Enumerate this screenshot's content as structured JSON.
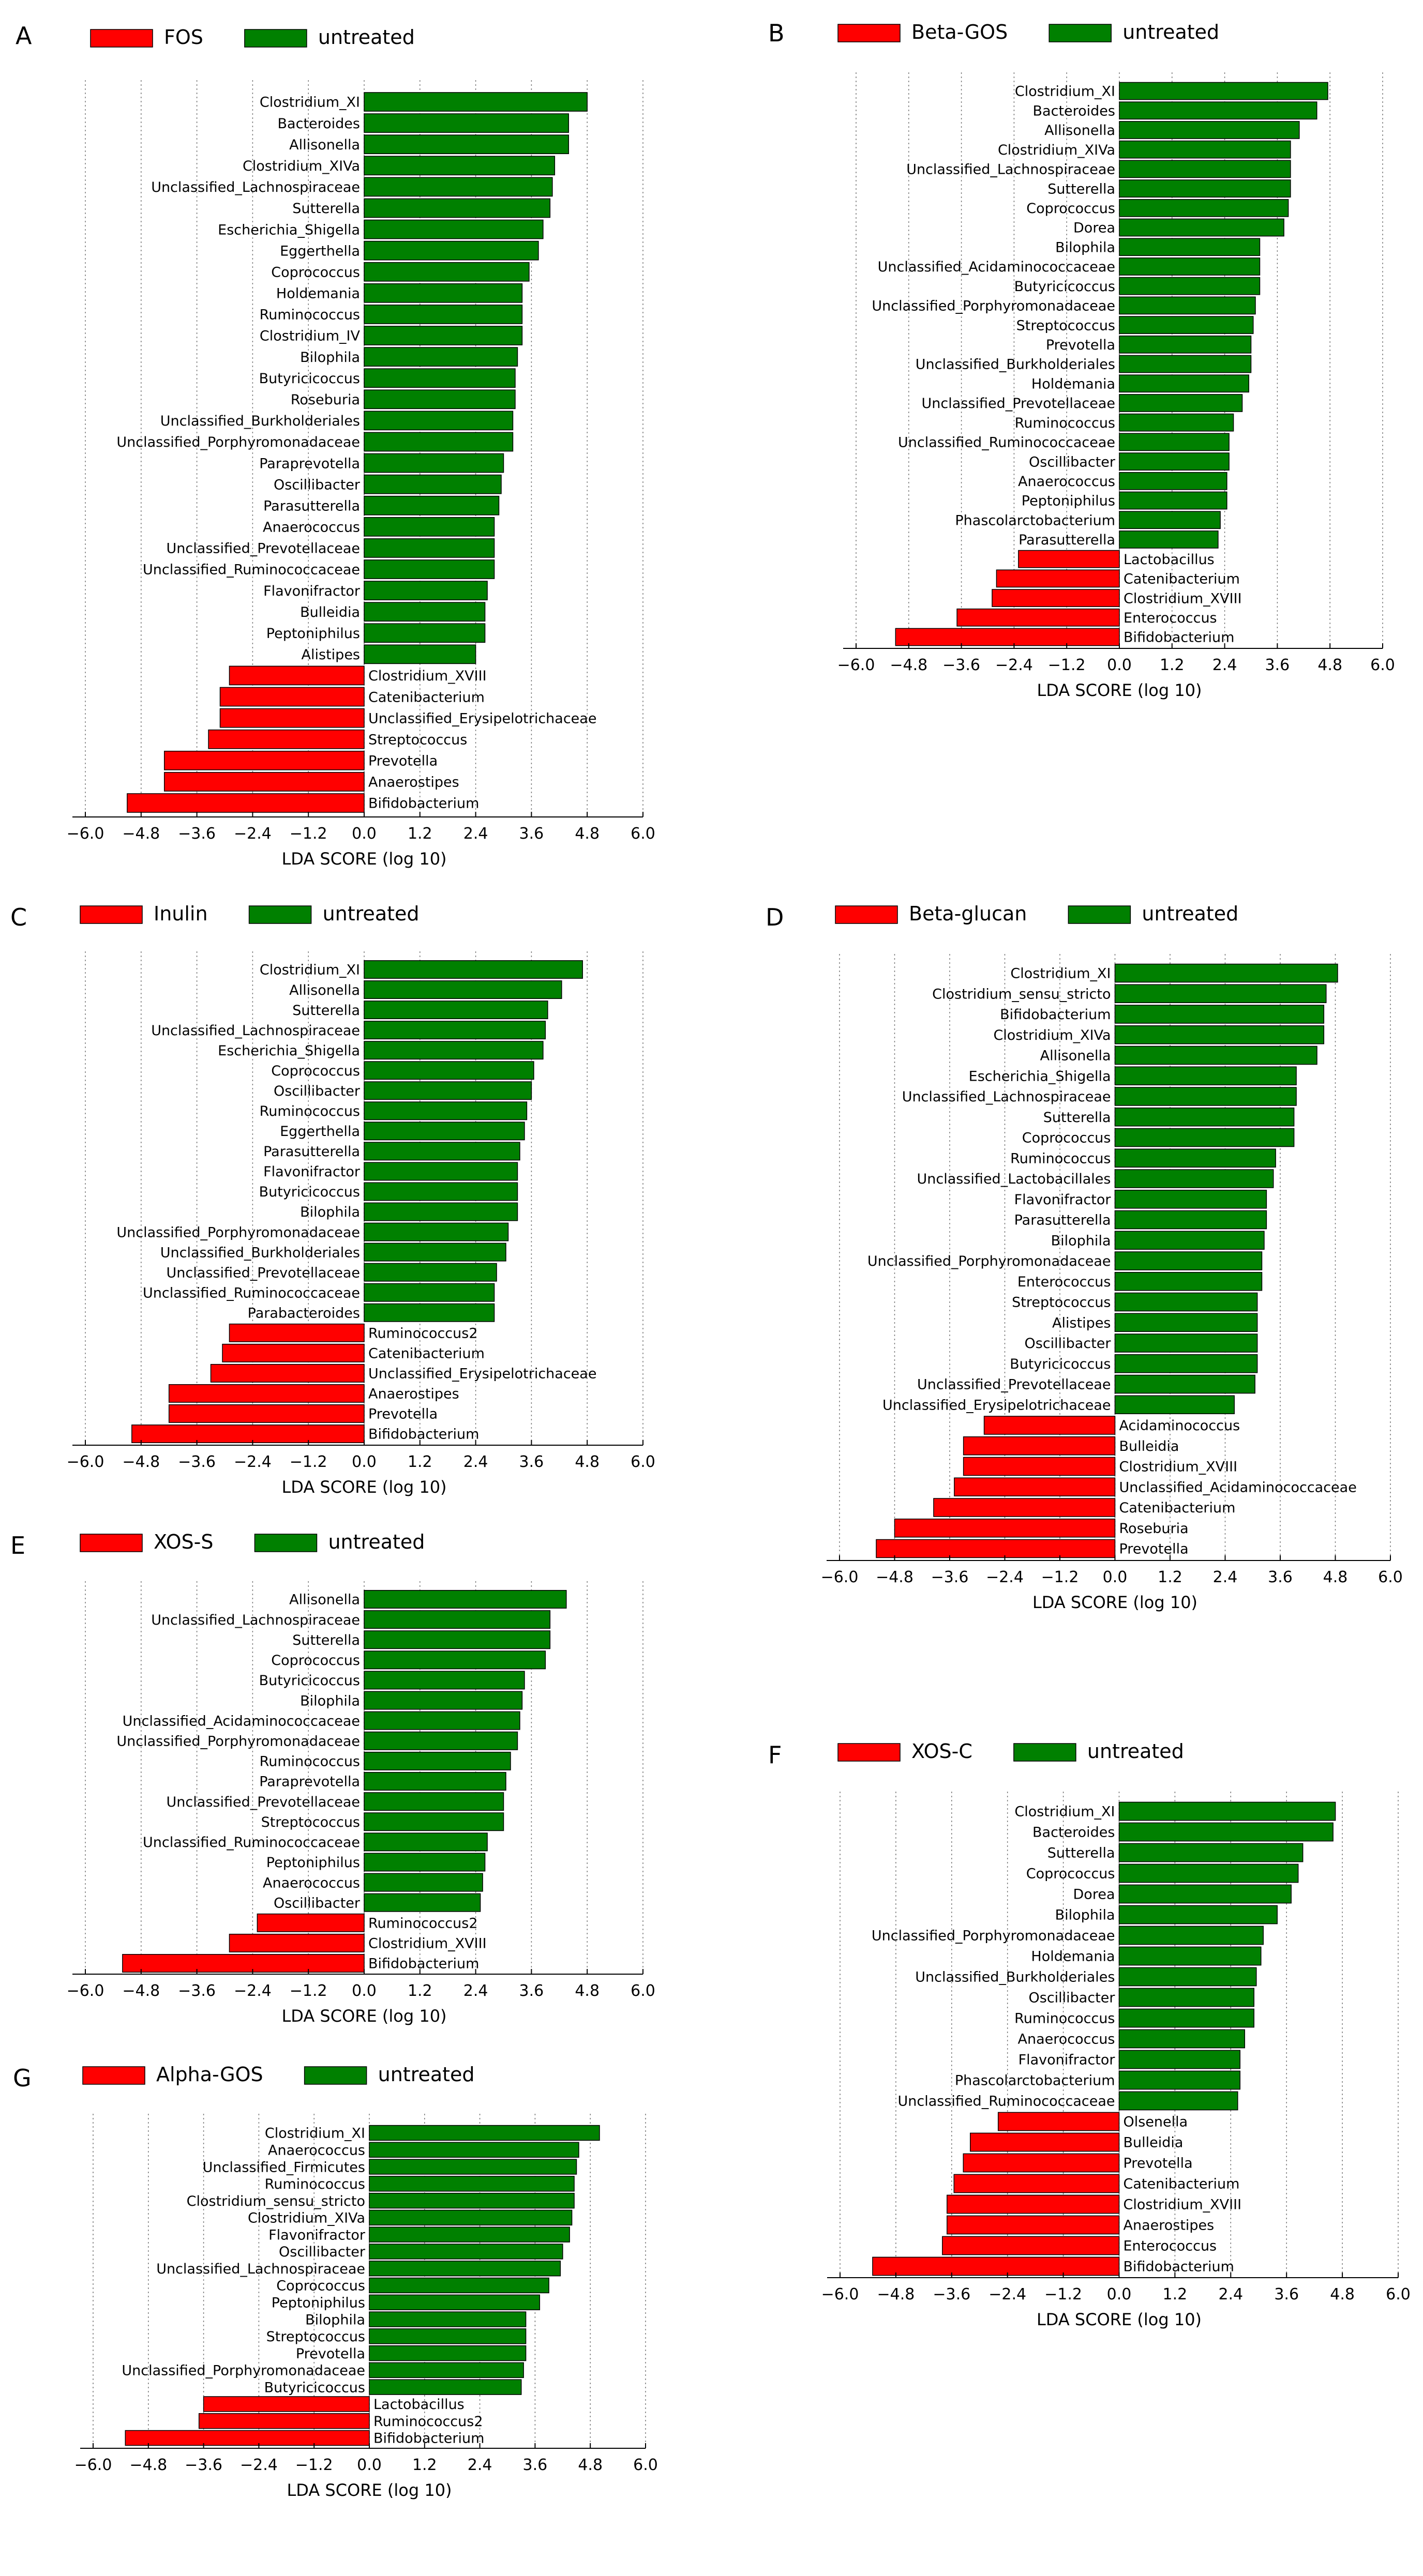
{
  "figure_type": "LEfSe LDA bar charts",
  "colors": {
    "treated": "#ff0000",
    "untreated": "#008000",
    "axis": "#000000",
    "grid": "#777777"
  },
  "chart_data": [
    {
      "panel": "A",
      "type": "bar",
      "orientation": "horizontal",
      "legend": [
        "FOS",
        "untreated"
      ],
      "xlabel": "LDA SCORE (log 10)",
      "xlim": [
        -6.0,
        6.0
      ],
      "ticks": [
        "−6.0",
        "−4.8",
        "−3.6",
        "−2.4",
        "−1.2",
        "0.0",
        "1.2",
        "2.4",
        "3.6",
        "4.8",
        "6.0"
      ],
      "categories": [
        "Clostridium_XI",
        "Bacteroides",
        "Allisonella",
        "Clostridium_XIVa",
        "Unclassified_Lachnospiraceae",
        "Sutterella",
        "Escherichia_Shigella",
        "Eggerthella",
        "Coprococcus",
        "Holdemania",
        "Ruminococcus",
        "Clostridium_IV",
        "Bilophila",
        "Butyricicoccus",
        "Roseburia",
        "Unclassified_Burkholderiales",
        "Unclassified_Porphyromonadaceae",
        "Paraprevotella",
        "Oscillibacter",
        "Parasutterella",
        "Anaerococcus",
        "Unclassified_Prevotellaceae",
        "Unclassified_Ruminococcaceae",
        "Flavonifractor",
        "Bulleidia",
        "Peptoniphilus",
        "Alistipes",
        "Clostridium_XVIII",
        "Catenibacterium",
        "Unclassified_Erysipelotrichaceae",
        "Streptococcus",
        "Prevotella",
        "Anaerostipes",
        "Bifidobacterium"
      ],
      "values": [
        4.8,
        4.4,
        4.4,
        4.1,
        4.05,
        4.0,
        3.85,
        3.75,
        3.55,
        3.4,
        3.4,
        3.4,
        3.3,
        3.25,
        3.25,
        3.2,
        3.2,
        3.0,
        2.95,
        2.9,
        2.8,
        2.8,
        2.8,
        2.65,
        2.6,
        2.6,
        2.4,
        -2.9,
        -3.1,
        -3.1,
        -3.35,
        -4.3,
        -4.3,
        -5.1
      ]
    },
    {
      "panel": "B",
      "type": "bar",
      "orientation": "horizontal",
      "legend": [
        "Beta-GOS",
        "untreated"
      ],
      "xlabel": "LDA SCORE (log 10)",
      "xlim": [
        -6.0,
        6.0
      ],
      "ticks": [
        "−6.0",
        "−4.8",
        "−3.6",
        "−2.4",
        "−1.2",
        "0.0",
        "1.2",
        "2.4",
        "3.6",
        "4.8",
        "6.0"
      ],
      "categories": [
        "Clostridium_XI",
        "Bacteroides",
        "Allisonella",
        "Clostridium_XIVa",
        "Unclassified_Lachnospiraceae",
        "Sutterella",
        "Coprococcus",
        "Dorea",
        "Bilophila",
        "Unclassified_Acidaminococcaceae",
        "Butyricicoccus",
        "Unclassified_Porphyromonadaceae",
        "Streptococcus",
        "Prevotella",
        "Unclassified_Burkholderiales",
        "Holdemania",
        "Unclassified_Prevotellaceae",
        "Ruminococcus",
        "Unclassified_Ruminococcaceae",
        "Oscillibacter",
        "Anaerococcus",
        "Peptoniphilus",
        "Phascolarctobacterium",
        "Parasutterella",
        "Lactobacillus",
        "Catenibacterium",
        "Clostridium_XVIII",
        "Enterococcus",
        "Bifidobacterium"
      ],
      "values": [
        4.75,
        4.5,
        4.1,
        3.9,
        3.9,
        3.9,
        3.85,
        3.75,
        3.2,
        3.2,
        3.2,
        3.1,
        3.05,
        3.0,
        3.0,
        2.95,
        2.8,
        2.6,
        2.5,
        2.5,
        2.45,
        2.45,
        2.3,
        2.25,
        -2.3,
        -2.8,
        -2.9,
        -3.7,
        -5.1
      ]
    },
    {
      "panel": "C",
      "type": "bar",
      "orientation": "horizontal",
      "legend": [
        "Inulin",
        "untreated"
      ],
      "xlabel": "LDA SCORE (log 10)",
      "xlim": [
        -6.0,
        6.0
      ],
      "ticks": [
        "−6.0",
        "−4.8",
        "−3.6",
        "−2.4",
        "−1.2",
        "0.0",
        "1.2",
        "2.4",
        "3.6",
        "4.8",
        "6.0"
      ],
      "categories": [
        "Clostridium_XI",
        "Allisonella",
        "Sutterella",
        "Unclassified_Lachnospiraceae",
        "Escherichia_Shigella",
        "Coprococcus",
        "Oscillibacter",
        "Ruminococcus",
        "Eggerthella",
        "Parasutterella",
        "Flavonifractor",
        "Butyricicoccus",
        "Bilophila",
        "Unclassified_Porphyromonadaceae",
        "Unclassified_Burkholderiales",
        "Unclassified_Prevotellaceae",
        "Unclassified_Ruminococcaceae",
        "Parabacteroides",
        "Ruminococcus2",
        "Catenibacterium",
        "Unclassified_Erysipelotrichaceae",
        "Anaerostipes",
        "Prevotella",
        "Bifidobacterium"
      ],
      "values": [
        4.7,
        4.25,
        3.95,
        3.9,
        3.85,
        3.65,
        3.6,
        3.5,
        3.45,
        3.35,
        3.3,
        3.3,
        3.3,
        3.1,
        3.05,
        2.85,
        2.8,
        2.8,
        -2.9,
        -3.05,
        -3.3,
        -4.2,
        -4.2,
        -5.0
      ]
    },
    {
      "panel": "D",
      "type": "bar",
      "orientation": "horizontal",
      "legend": [
        "Beta-glucan",
        "untreated"
      ],
      "xlabel": "LDA SCORE (log 10)",
      "xlim": [
        -6.0,
        6.0
      ],
      "ticks": [
        "−6.0",
        "−4.8",
        "−3.6",
        "−2.4",
        "−1.2",
        "0.0",
        "1.2",
        "2.4",
        "3.6",
        "4.8",
        "6.0"
      ],
      "categories": [
        "Clostridium_XI",
        "Clostridium_sensu_stricto",
        "Bifidobacterium",
        "Clostridium_XIVa",
        "Allisonella",
        "Escherichia_Shigella",
        "Unclassified_Lachnospiraceae",
        "Sutterella",
        "Coprococcus",
        "Ruminococcus",
        "Unclassified_Lactobacillales",
        "Flavonifractor",
        "Parasutterella",
        "Bilophila",
        "Unclassified_Porphyromonadaceae",
        "Enterococcus",
        "Streptococcus",
        "Alistipes",
        "Oscillibacter",
        "Butyricicoccus",
        "Unclassified_Prevotellaceae",
        "Unclassified_Erysipelotrichaceae",
        "Acidaminococcus",
        "Bulleidia",
        "Clostridium_XVIII",
        "Unclassified_Acidaminococcaceae",
        "Catenibacterium",
        "Roseburia",
        "Prevotella"
      ],
      "values": [
        4.85,
        4.6,
        4.55,
        4.55,
        4.4,
        3.95,
        3.95,
        3.9,
        3.9,
        3.5,
        3.45,
        3.3,
        3.3,
        3.25,
        3.2,
        3.2,
        3.1,
        3.1,
        3.1,
        3.1,
        3.05,
        2.6,
        -2.85,
        -3.3,
        -3.3,
        -3.5,
        -3.95,
        -4.8,
        -5.2
      ]
    },
    {
      "panel": "E",
      "type": "bar",
      "orientation": "horizontal",
      "legend": [
        "XOS-S",
        "untreated"
      ],
      "xlabel": "LDA SCORE (log 10)",
      "xlim": [
        -6.0,
        6.0
      ],
      "ticks": [
        "−6.0",
        "−4.8",
        "−3.6",
        "−2.4",
        "−1.2",
        "0.0",
        "1.2",
        "2.4",
        "3.6",
        "4.8",
        "6.0"
      ],
      "categories": [
        "Allisonella",
        "Unclassified_Lachnospiraceae",
        "Sutterella",
        "Coprococcus",
        "Butyricicoccus",
        "Bilophila",
        "Unclassified_Acidaminococcaceae",
        "Unclassified_Porphyromonadaceae",
        "Ruminococcus",
        "Paraprevotella",
        "Unclassified_Prevotellaceae",
        "Streptococcus",
        "Unclassified_Ruminococcaceae",
        "Peptoniphilus",
        "Anaerococcus",
        "Oscillibacter",
        "Ruminococcus2",
        "Clostridium_XVIII",
        "Bifidobacterium"
      ],
      "values": [
        4.35,
        4.0,
        4.0,
        3.9,
        3.45,
        3.4,
        3.35,
        3.3,
        3.15,
        3.05,
        3.0,
        3.0,
        2.65,
        2.6,
        2.55,
        2.5,
        -2.3,
        -2.9,
        -5.2
      ]
    },
    {
      "panel": "F",
      "type": "bar",
      "orientation": "horizontal",
      "legend": [
        "XOS-C",
        "untreated"
      ],
      "xlabel": "LDA SCORE (log 10)",
      "xlim": [
        -6.0,
        6.0
      ],
      "ticks": [
        "−6.0",
        "−4.8",
        "−3.6",
        "−2.4",
        "−1.2",
        "0.0",
        "1.2",
        "2.4",
        "3.6",
        "4.8",
        "6.0"
      ],
      "categories": [
        "Clostridium_XI",
        "Bacteroides",
        "Sutterella",
        "Coprococcus",
        "Dorea",
        "Bilophila",
        "Unclassified_Porphyromonadaceae",
        "Holdemania",
        "Unclassified_Burkholderiales",
        "Oscillibacter",
        "Ruminococcus",
        "Anaerococcus",
        "Flavonifractor",
        "Phascolarctobacterium",
        "Unclassified_Ruminococcaceae",
        "Olsenella",
        "Bulleidia",
        "Prevotella",
        "Catenibacterium",
        "Clostridium_XVIII",
        "Anaerostipes",
        "Enterococcus",
        "Bifidobacterium"
      ],
      "values": [
        4.65,
        4.6,
        3.95,
        3.85,
        3.7,
        3.4,
        3.1,
        3.05,
        2.95,
        2.9,
        2.9,
        2.7,
        2.6,
        2.6,
        2.55,
        -2.6,
        -3.2,
        -3.35,
        -3.55,
        -3.7,
        -3.7,
        -3.8,
        -5.3
      ]
    },
    {
      "panel": "G",
      "type": "bar",
      "orientation": "horizontal",
      "legend": [
        "Alpha-GOS",
        "untreated"
      ],
      "xlabel": "LDA SCORE (log 10)",
      "xlim": [
        -6.0,
        6.0
      ],
      "ticks": [
        "−6.0",
        "−4.8",
        "−3.6",
        "−2.4",
        "−1.2",
        "0.0",
        "1.2",
        "2.4",
        "3.6",
        "4.8",
        "6.0"
      ],
      "categories": [
        "Clostridium_XI",
        "Anaerococcus",
        "Unclassified_Firmicutes",
        "Ruminococcus",
        "Clostridium_sensu_stricto",
        "Clostridium_XIVa",
        "Flavonifractor",
        "Oscillibacter",
        "Unclassified_Lachnospiraceae",
        "Coprococcus",
        "Peptoniphilus",
        "Bilophila",
        "Streptococcus",
        "Prevotella",
        "Unclassified_Porphyromonadaceae",
        "Butyricicoccus",
        "Lactobacillus",
        "Ruminococcus2",
        "Bifidobacterium"
      ],
      "values": [
        5.0,
        4.55,
        4.5,
        4.45,
        4.45,
        4.4,
        4.35,
        4.2,
        4.15,
        3.9,
        3.7,
        3.4,
        3.4,
        3.4,
        3.35,
        3.3,
        -3.6,
        -3.7,
        -5.3
      ]
    }
  ]
}
